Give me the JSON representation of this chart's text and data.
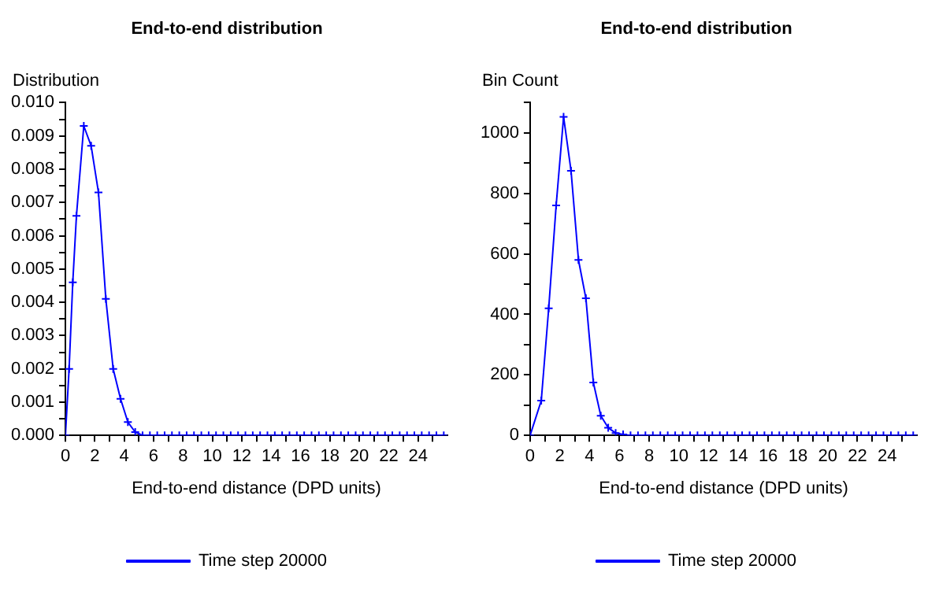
{
  "chart_data": [
    {
      "type": "line",
      "title": "End-to-end distribution",
      "xlabel": "End-to-end distance (DPD units)",
      "ylabel": "Distribution",
      "legend": "bottom",
      "marker": "cross",
      "grid": false,
      "x": [
        0,
        0.25,
        0.5,
        0.75,
        1.25,
        1.75,
        2.25,
        2.75,
        3.25,
        3.75,
        4.25,
        4.75,
        5.25,
        5.75,
        6.25,
        6.75,
        7.25,
        7.75,
        8.25,
        8.75,
        9.25,
        9.75,
        10.25,
        10.75,
        11.25,
        11.75,
        12.25,
        12.75,
        13.25,
        13.75,
        14.25,
        14.75,
        15.25,
        15.75,
        16.25,
        16.75,
        17.25,
        17.75,
        18.25,
        18.75,
        19.25,
        19.75,
        20.25,
        20.75,
        21.25,
        21.75,
        22.25,
        22.75,
        23.25,
        23.75,
        24.25,
        24.75,
        25.25,
        25.75
      ],
      "series": [
        {
          "name": "Time step 20000",
          "color": "#0000ff",
          "values": [
            0,
            0.002,
            0.0046,
            0.0066,
            0.0093,
            0.0087,
            0.0073,
            0.0041,
            0.002,
            0.0011,
            0.0004,
            0.0001,
            0,
            0,
            0,
            0,
            0,
            0,
            0,
            0,
            0,
            0,
            0,
            0,
            0,
            0,
            0,
            0,
            0,
            0,
            0,
            0,
            0,
            0,
            0,
            0,
            0,
            0,
            0,
            0,
            0,
            0,
            0,
            0,
            0,
            0,
            0,
            0,
            0,
            0,
            0,
            0,
            0,
            0
          ]
        }
      ],
      "xlim": [
        0,
        26
      ],
      "xticks": [
        0,
        {
          "value": 1,
          "label": null
        },
        2,
        {
          "value": 3,
          "label": null
        },
        4,
        {
          "value": 5,
          "label": null
        },
        6,
        {
          "value": 7,
          "label": null
        },
        8,
        {
          "value": 9,
          "label": null
        },
        10,
        {
          "value": 11,
          "label": null
        },
        12,
        {
          "value": 13,
          "label": null
        },
        14,
        {
          "value": 15,
          "label": null
        },
        16,
        {
          "value": 17,
          "label": null
        },
        18,
        {
          "value": 19,
          "label": null
        },
        20,
        {
          "value": 21,
          "label": null
        },
        22,
        {
          "value": 23,
          "label": null
        },
        24,
        {
          "value": 25,
          "label": null
        }
      ],
      "ylim": [
        0,
        0.01
      ],
      "yticks": [
        {
          "value": 0,
          "label": "0.000"
        },
        {
          "value": 0.0005,
          "label": null
        },
        {
          "value": 0.001,
          "label": "0.001"
        },
        {
          "value": 0.0015,
          "label": null
        },
        {
          "value": 0.002,
          "label": "0.002"
        },
        {
          "value": 0.0025,
          "label": null
        },
        {
          "value": 0.003,
          "label": "0.003"
        },
        {
          "value": 0.0035,
          "label": null
        },
        {
          "value": 0.004,
          "label": "0.004"
        },
        {
          "value": 0.0045,
          "label": null
        },
        {
          "value": 0.005,
          "label": "0.005"
        },
        {
          "value": 0.0055,
          "label": null
        },
        {
          "value": 0.006,
          "label": "0.006"
        },
        {
          "value": 0.0065,
          "label": null
        },
        {
          "value": 0.007,
          "label": "0.007"
        },
        {
          "value": 0.0075,
          "label": null
        },
        {
          "value": 0.008,
          "label": "0.008"
        },
        {
          "value": 0.0085,
          "label": null
        },
        {
          "value": 0.009,
          "label": "0.009"
        },
        {
          "value": 0.0095,
          "label": null
        },
        {
          "value": 0.01,
          "label": "0.010"
        }
      ]
    },
    {
      "type": "line",
      "title": "End-to-end distribution",
      "xlabel": "End-to-end distance (DPD units)",
      "ylabel": "Bin Count",
      "legend": "bottom",
      "marker": "cross",
      "grid": false,
      "x": [
        0,
        0.75,
        1.25,
        1.75,
        2.25,
        2.75,
        3.25,
        3.75,
        4.25,
        4.75,
        5.25,
        5.75,
        6.25,
        6.75,
        7.25,
        7.75,
        8.25,
        8.75,
        9.25,
        9.75,
        10.25,
        10.75,
        11.25,
        11.75,
        12.25,
        12.75,
        13.25,
        13.75,
        14.25,
        14.75,
        15.25,
        15.75,
        16.25,
        16.75,
        17.25,
        17.75,
        18.25,
        18.75,
        19.25,
        19.75,
        20.25,
        20.75,
        21.25,
        21.75,
        22.25,
        22.75,
        23.25,
        23.75,
        24.25,
        24.75,
        25.25,
        25.75
      ],
      "series": [
        {
          "name": "Time step 20000",
          "color": "#0000ff",
          "values": [
            0,
            115,
            420,
            760,
            1053,
            875,
            580,
            453,
            175,
            65,
            25,
            8,
            3,
            0,
            0,
            0,
            0,
            0,
            0,
            0,
            0,
            0,
            0,
            0,
            0,
            0,
            0,
            0,
            0,
            0,
            0,
            0,
            0,
            0,
            0,
            0,
            0,
            0,
            0,
            0,
            0,
            0,
            0,
            0,
            0,
            0,
            0,
            0,
            0,
            0,
            0,
            0
          ]
        }
      ],
      "xlim": [
        0,
        26
      ],
      "xticks": [
        0,
        {
          "value": 1,
          "label": null
        },
        2,
        {
          "value": 3,
          "label": null
        },
        4,
        {
          "value": 5,
          "label": null
        },
        6,
        {
          "value": 7,
          "label": null
        },
        8,
        {
          "value": 9,
          "label": null
        },
        10,
        {
          "value": 11,
          "label": null
        },
        12,
        {
          "value": 13,
          "label": null
        },
        14,
        {
          "value": 15,
          "label": null
        },
        16,
        {
          "value": 17,
          "label": null
        },
        18,
        {
          "value": 19,
          "label": null
        },
        20,
        {
          "value": 21,
          "label": null
        },
        22,
        {
          "value": 23,
          "label": null
        },
        24,
        {
          "value": 25,
          "label": null
        }
      ],
      "ylim": [
        0,
        1100
      ],
      "yticks": [
        0,
        {
          "value": 100,
          "label": null
        },
        200,
        {
          "value": 300,
          "label": null
        },
        400,
        {
          "value": 500,
          "label": null
        },
        600,
        {
          "value": 700,
          "label": null
        },
        800,
        {
          "value": 900,
          "label": null
        },
        1000,
        {
          "value": 1100,
          "label": null
        }
      ]
    }
  ]
}
